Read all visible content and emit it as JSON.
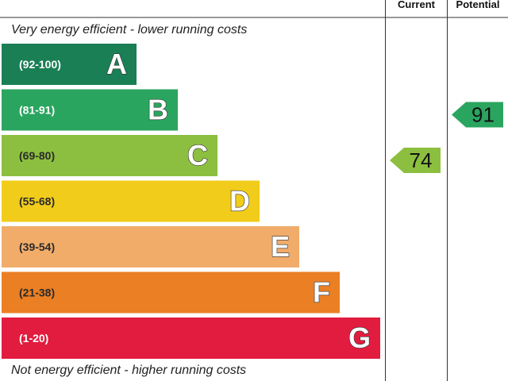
{
  "top_caption": "Very energy efficient - lower running costs",
  "bottom_caption": "Not energy efficient - higher running costs",
  "column_headers": {
    "current": "Current",
    "potential": "Potential"
  },
  "chart_data": {
    "type": "bar",
    "title": "",
    "categories": [
      "A",
      "B",
      "C",
      "D",
      "E",
      "F",
      "G"
    ],
    "bands": [
      {
        "letter": "A",
        "range": "(92-100)",
        "color": "#1a7f55"
      },
      {
        "letter": "B",
        "range": "(81-91)",
        "color": "#2aa55f"
      },
      {
        "letter": "C",
        "range": "(69-80)",
        "color": "#8cbf3f"
      },
      {
        "letter": "D",
        "range": "(55-68)",
        "color": "#f2cc1a"
      },
      {
        "letter": "E",
        "range": "(39-54)",
        "color": "#f1ac6a"
      },
      {
        "letter": "F",
        "range": "(21-38)",
        "color": "#ea7f24"
      },
      {
        "letter": "G",
        "range": "(1-20)",
        "color": "#e21c3f"
      }
    ],
    "current": {
      "value": 74,
      "band": "C",
      "color": "#8cbf3f"
    },
    "potential": {
      "value": 91,
      "band": "B",
      "color": "#2aa55f"
    }
  }
}
